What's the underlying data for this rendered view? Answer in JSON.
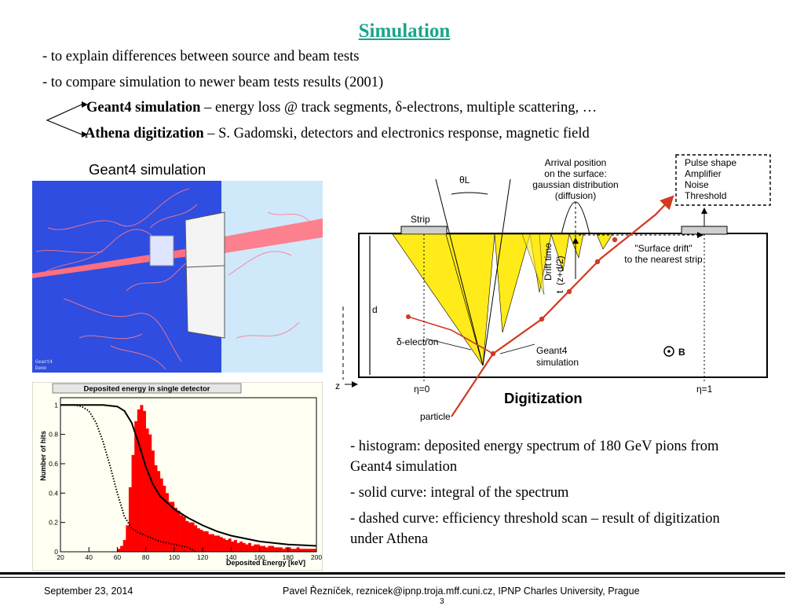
{
  "title": "Simulation",
  "bullets": [
    "- to explain differences between source and beam tests",
    "- to compare simulation to newer beam tests results (2001)"
  ],
  "sub_items": [
    {
      "bold": "Geant4 simulation",
      "rest": " – energy loss @ track segments, δ-electrons, multiple scattering, …"
    },
    {
      "bold": "Athena digitization",
      "rest": " – S. Gadomski, detectors and electronics response, magnetic field"
    }
  ],
  "geant_caption": "Geant4 simulation",
  "geant_corner": [
    "Geant4",
    "Demo"
  ],
  "histogram": {
    "title": "Deposited energy in single detector",
    "xlabel": "Deposited Energy [keV]",
    "ylabel": "Number of hits",
    "x_ticks": [
      "20",
      "40",
      "60",
      "80",
      "100",
      "120",
      "140",
      "160",
      "180",
      "200"
    ],
    "y_ticks": [
      "0",
      "0.2",
      "0.4",
      "0.6",
      "0.8",
      "1"
    ]
  },
  "chart_data": {
    "type": "bar",
    "title": "Deposited energy in single detector",
    "xlabel": "Deposited Energy [keV]",
    "ylabel": "Number of hits",
    "xlim": [
      20,
      200
    ],
    "ylim": [
      0,
      1.05
    ],
    "bin_width": 2,
    "histogram": {
      "x": [
        62,
        64,
        66,
        68,
        70,
        72,
        74,
        76,
        78,
        80,
        82,
        84,
        86,
        88,
        90,
        92,
        94,
        96,
        98,
        100,
        102,
        104,
        106,
        108,
        110,
        112,
        114,
        116,
        118,
        120,
        122,
        124,
        126,
        128,
        130,
        132,
        134,
        136,
        138,
        140,
        142,
        144,
        146,
        148,
        150,
        152,
        154,
        156,
        158,
        160,
        162,
        164,
        166,
        168,
        170,
        172,
        174,
        176,
        178,
        180,
        182,
        184,
        186,
        188,
        190,
        192,
        194,
        196,
        198,
        200
      ],
      "values": [
        0.02,
        0.04,
        0.08,
        0.18,
        0.44,
        0.66,
        0.89,
        0.97,
        1.0,
        0.96,
        0.84,
        0.8,
        0.69,
        0.59,
        0.55,
        0.5,
        0.45,
        0.4,
        0.34,
        0.34,
        0.3,
        0.28,
        0.25,
        0.24,
        0.21,
        0.2,
        0.2,
        0.18,
        0.16,
        0.15,
        0.14,
        0.14,
        0.12,
        0.12,
        0.11,
        0.11,
        0.1,
        0.09,
        0.08,
        0.09,
        0.07,
        0.08,
        0.06,
        0.07,
        0.06,
        0.05,
        0.06,
        0.04,
        0.05,
        0.05,
        0.04,
        0.04,
        0.03,
        0.04,
        0.04,
        0.03,
        0.03,
        0.03,
        0.02,
        0.03,
        0.03,
        0.02,
        0.02,
        0.03,
        0.02,
        0.02,
        0.02,
        0.02,
        0.02,
        0.02
      ]
    },
    "series": [
      {
        "style": "solid",
        "x": [
          20,
          50,
          60,
          65,
          70,
          75,
          80,
          85,
          90,
          100,
          110,
          120,
          130,
          140,
          160,
          180,
          200
        ],
        "y": [
          1.0,
          1.0,
          0.99,
          0.96,
          0.88,
          0.74,
          0.58,
          0.46,
          0.38,
          0.29,
          0.23,
          0.18,
          0.14,
          0.11,
          0.07,
          0.05,
          0.04
        ]
      },
      {
        "style": "dotted",
        "x": [
          20,
          30,
          35,
          40,
          45,
          50,
          55,
          60,
          65,
          70,
          75,
          80,
          85,
          90,
          100,
          110,
          115
        ],
        "y": [
          1.0,
          1.0,
          0.99,
          0.96,
          0.88,
          0.75,
          0.58,
          0.4,
          0.24,
          0.16,
          0.13,
          0.11,
          0.09,
          0.07,
          0.05,
          0.03,
          0.0
        ]
      }
    ]
  },
  "diagram": {
    "strip_left": "Strip",
    "theta": "θL",
    "arrival": [
      "Arrival position",
      "on the surface:",
      "gaussian distribution",
      "(diffusion)"
    ],
    "pulse": [
      "Pulse shape",
      "Amplifier",
      "Noise",
      "Threshold"
    ],
    "surface_drift": [
      "\"Surface drift\"",
      "to the nearest strip"
    ],
    "drift_time": [
      "Drift time",
      "t",
      "(z+d/2)"
    ],
    "d": "d",
    "z": "z",
    "delta_electron": "δ-electron",
    "geant4": [
      "Geant4",
      "simulation"
    ],
    "b_field": "B",
    "eta0": "η=0",
    "eta1": "η=1",
    "particle": "particle"
  },
  "digitization_caption": "Digitization",
  "notes": [
    "- histogram: deposited energy spectrum of 180 GeV pions from Geant4 simulation",
    "- solid curve: integral of the spectrum",
    "- dashed curve: efficiency threshold scan – result of digitization under Athena"
  ],
  "footer": {
    "date": "September 23, 2014",
    "author": "Pavel Řezníček, reznicek@ipnp.troja.mff.cuni.cz, IPNP Charles University, Prague",
    "page": "3"
  }
}
